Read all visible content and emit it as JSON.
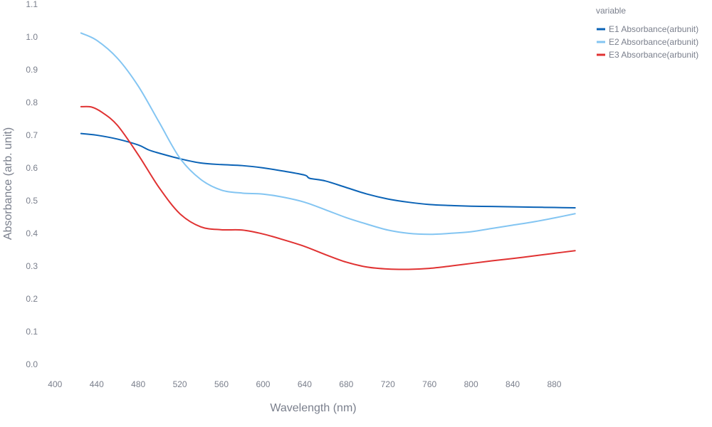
{
  "chart_data": {
    "type": "line",
    "title": "",
    "xlabel": "Wavelength (nm)",
    "ylabel": "Absorbance (arb. unit)",
    "xlim": [
      395,
      905
    ],
    "ylim": [
      -0.02,
      1.1
    ],
    "x_ticks": [
      400,
      440,
      480,
      520,
      560,
      600,
      640,
      680,
      720,
      760,
      800,
      840,
      880
    ],
    "y_ticks": [
      0.0,
      0.1,
      0.2,
      0.3,
      0.4,
      0.5,
      0.6,
      0.7,
      0.8,
      0.9,
      1.0,
      1.1
    ],
    "y_tick_labels": [
      "0.0",
      "0.1",
      "0.2",
      "0.3",
      "0.4",
      "0.5",
      "0.6",
      "0.7",
      "0.8",
      "0.9",
      "1.0",
      "1.1"
    ],
    "grid": false,
    "legend": {
      "title": "variable",
      "position": "top-right"
    },
    "series": [
      {
        "name": "E1 Absorbance(arbunit)",
        "color": "#0b63b6",
        "x": [
          425,
          440,
          460,
          480,
          490,
          500,
          520,
          540,
          560,
          580,
          600,
          620,
          640,
          645,
          660,
          680,
          700,
          720,
          740,
          760,
          780,
          800,
          820,
          840,
          860,
          880,
          900
        ],
        "y": [
          0.705,
          0.7,
          0.688,
          0.67,
          0.655,
          0.645,
          0.628,
          0.615,
          0.61,
          0.607,
          0.6,
          0.59,
          0.578,
          0.568,
          0.56,
          0.54,
          0.52,
          0.505,
          0.495,
          0.488,
          0.485,
          0.483,
          0.482,
          0.481,
          0.48,
          0.479,
          0.478
        ]
      },
      {
        "name": "E2 Absorbance(arbunit)",
        "color": "#83c5f2",
        "x": [
          425,
          440,
          460,
          480,
          500,
          520,
          540,
          560,
          580,
          600,
          620,
          640,
          660,
          680,
          700,
          720,
          740,
          760,
          780,
          800,
          820,
          840,
          860,
          880,
          900
        ],
        "y": [
          1.012,
          0.99,
          0.935,
          0.85,
          0.74,
          0.63,
          0.565,
          0.532,
          0.523,
          0.52,
          0.51,
          0.495,
          0.472,
          0.448,
          0.428,
          0.41,
          0.4,
          0.397,
          0.4,
          0.405,
          0.415,
          0.425,
          0.435,
          0.447,
          0.46
        ]
      },
      {
        "name": "E3 Absorbance(arbunit)",
        "color": "#e03232",
        "x": [
          425,
          435,
          445,
          460,
          480,
          500,
          520,
          540,
          560,
          580,
          600,
          620,
          640,
          660,
          680,
          700,
          720,
          740,
          760,
          780,
          800,
          820,
          840,
          860,
          880,
          900
        ],
        "y": [
          0.787,
          0.786,
          0.77,
          0.73,
          0.64,
          0.54,
          0.46,
          0.42,
          0.411,
          0.41,
          0.398,
          0.38,
          0.36,
          0.335,
          0.312,
          0.297,
          0.291,
          0.29,
          0.293,
          0.3,
          0.308,
          0.316,
          0.323,
          0.331,
          0.339,
          0.347
        ]
      }
    ]
  }
}
